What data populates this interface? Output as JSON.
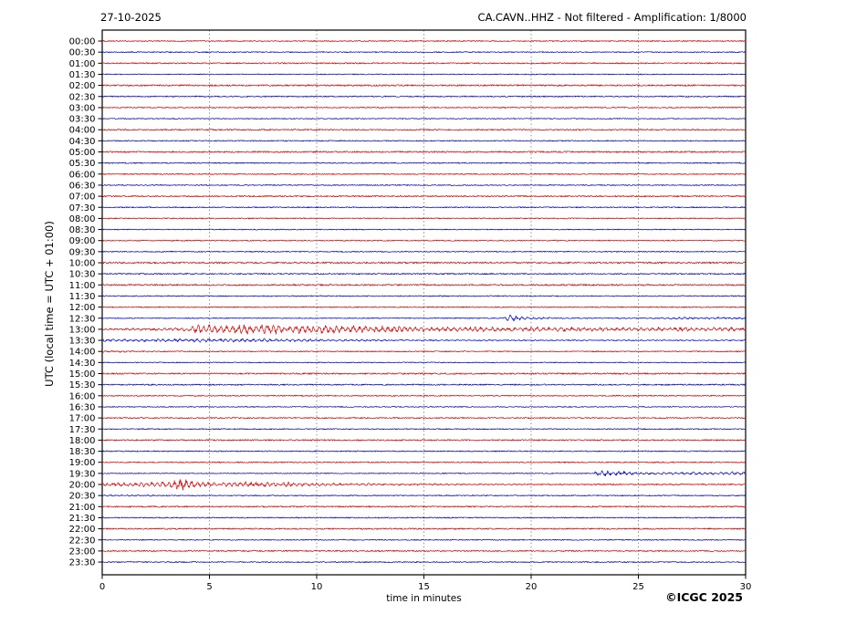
{
  "header": {
    "date": "27-10-2025",
    "title": "CA.CAVN..HHZ - Not filtered - Amplification: 1/8000"
  },
  "footer": {
    "copyright": "©ICGC 2025"
  },
  "colors": {
    "background": "#ffffff",
    "axis": "#000000",
    "grid": "#777777",
    "trace_red": "#e00000",
    "trace_blue": "#0000d8"
  },
  "chart_data": {
    "type": "line",
    "subtype": "helicorder-seismogram",
    "title": "CA.CAVN..HHZ - Not filtered - Amplification: 1/8000",
    "station": "CA.CAVN..HHZ",
    "processing": "Not filtered",
    "amplification": "1/8000",
    "date": "27-10-2025",
    "xlabel": "time in minutes",
    "ylabel": "UTC (local time = UTC + 01:00)",
    "xlim": [
      0,
      30
    ],
    "x_ticks": [
      0,
      5,
      10,
      15,
      20,
      25,
      30
    ],
    "grid_minutes": [
      5,
      10,
      15,
      20,
      25
    ],
    "minutes_per_row": 30,
    "rows": 48,
    "legend": "rows alternate red (on the hour) and blue (on the half hour)",
    "events": [
      {
        "row": "12:30",
        "onset_min": 18.8,
        "description": "small high-frequency burst with short decaying coda, slight re-activity 27-30 min"
      },
      {
        "row": "13:00",
        "onset_min": 4.0,
        "description": "strong sustained oscillation lasting the entire row, slowly decaying"
      },
      {
        "row": "13:30",
        "description": "decaying coda of the 13:00 event through ~12 min"
      },
      {
        "row": "14:00",
        "description": "faint coda tail at start of row"
      },
      {
        "row": "19:30",
        "onset_min": 23.0,
        "description": "high-frequency burst with coda continuing to end of row"
      },
      {
        "row": "20:00",
        "peak_min": 3.6,
        "description": "largest burst of the day, strong spike near 3.5 min, decaying until ~12 min"
      },
      {
        "row": "20:30",
        "description": "faint coda tail at start of row"
      }
    ],
    "traces": [
      {
        "label": "00:00",
        "color": "red",
        "base": 0.6
      },
      {
        "label": "00:30",
        "color": "blue",
        "base": 0.55
      },
      {
        "label": "01:00",
        "color": "red",
        "base": 0.7
      },
      {
        "label": "01:30",
        "color": "blue",
        "base": 0.5
      },
      {
        "label": "02:00",
        "color": "red",
        "base": 0.8
      },
      {
        "label": "02:30",
        "color": "blue",
        "base": 0.65
      },
      {
        "label": "03:00",
        "color": "red",
        "base": 0.6
      },
      {
        "label": "03:30",
        "color": "blue",
        "base": 0.5
      },
      {
        "label": "04:00",
        "color": "red",
        "base": 0.7
      },
      {
        "label": "04:30",
        "color": "blue",
        "base": 0.55
      },
      {
        "label": "05:00",
        "color": "red",
        "base": 0.8
      },
      {
        "label": "05:30",
        "color": "blue",
        "base": 0.6
      },
      {
        "label": "06:00",
        "color": "red",
        "base": 0.65
      },
      {
        "label": "06:30",
        "color": "blue",
        "base": 0.55
      },
      {
        "label": "07:00",
        "color": "red",
        "base": 0.75
      },
      {
        "label": "07:30",
        "color": "blue",
        "base": 0.6
      },
      {
        "label": "08:00",
        "color": "red",
        "base": 0.6
      },
      {
        "label": "08:30",
        "color": "blue",
        "base": 0.5
      },
      {
        "label": "09:00",
        "color": "red",
        "base": 0.6
      },
      {
        "label": "09:30",
        "color": "blue",
        "base": 0.55
      },
      {
        "label": "10:00",
        "color": "red",
        "base": 0.85
      },
      {
        "label": "10:30",
        "color": "blue",
        "base": 0.7
      },
      {
        "label": "11:00",
        "color": "red",
        "base": 0.8
      },
      {
        "label": "11:30",
        "color": "blue",
        "base": 0.55
      },
      {
        "label": "12:00",
        "color": "red",
        "base": 0.6
      },
      {
        "label": "12:30",
        "color": "blue",
        "base": 0.5,
        "env": [
          [
            18.7,
            0
          ],
          [
            18.95,
            4.2
          ],
          [
            19.5,
            2.0
          ],
          [
            20.3,
            1.0
          ],
          [
            21.5,
            0.5
          ],
          [
            23,
            0.35
          ],
          [
            26,
            0.3
          ],
          [
            27,
            1.2
          ],
          [
            27.8,
            0.7
          ],
          [
            28.6,
            1.1
          ],
          [
            29.4,
            0.8
          ],
          [
            30,
            1.0
          ]
        ]
      },
      {
        "label": "13:00",
        "color": "red",
        "base": 0.7,
        "env": [
          [
            0,
            0.6
          ],
          [
            2,
            0.9
          ],
          [
            3.2,
            1.3
          ],
          [
            3.9,
            2.2
          ],
          [
            4.3,
            4.8
          ],
          [
            5.0,
            5.4
          ],
          [
            5.8,
            4.2
          ],
          [
            6.5,
            5.8
          ],
          [
            7.3,
            4.6
          ],
          [
            8.2,
            5.6
          ],
          [
            9.2,
            4.2
          ],
          [
            10.3,
            4.8
          ],
          [
            11.5,
            3.6
          ],
          [
            13,
            3.4
          ],
          [
            15,
            3.0
          ],
          [
            17,
            2.6
          ],
          [
            19,
            2.4
          ],
          [
            22,
            2.2
          ],
          [
            25,
            2.0
          ],
          [
            28,
            1.9
          ],
          [
            30,
            2.1
          ]
        ]
      },
      {
        "label": "13:30",
        "color": "blue",
        "base": 0.5,
        "env": [
          [
            0,
            1.7
          ],
          [
            1.5,
            1.3
          ],
          [
            3,
            1.5
          ],
          [
            4.5,
            2.0
          ],
          [
            6,
            1.8
          ],
          [
            7.5,
            2.0
          ],
          [
            9,
            1.5
          ],
          [
            11,
            1.1
          ],
          [
            13,
            0.8
          ],
          [
            16,
            0.55
          ],
          [
            20,
            0.4
          ],
          [
            25,
            0.3
          ],
          [
            30,
            0.3
          ]
        ]
      },
      {
        "label": "14:00",
        "color": "red",
        "base": 0.6,
        "env": [
          [
            0,
            0.8
          ],
          [
            1.5,
            0.5
          ],
          [
            3,
            0.25
          ],
          [
            5,
            0.1
          ],
          [
            30,
            0
          ]
        ]
      },
      {
        "label": "14:30",
        "color": "blue",
        "base": 0.5
      },
      {
        "label": "15:00",
        "color": "red",
        "base": 0.8
      },
      {
        "label": "15:30",
        "color": "blue",
        "base": 0.7
      },
      {
        "label": "16:00",
        "color": "red",
        "base": 0.6
      },
      {
        "label": "16:30",
        "color": "blue",
        "base": 0.5
      },
      {
        "label": "17:00",
        "color": "red",
        "base": 0.65
      },
      {
        "label": "17:30",
        "color": "blue",
        "base": 0.55
      },
      {
        "label": "18:00",
        "color": "red",
        "base": 0.7
      },
      {
        "label": "18:30",
        "color": "blue",
        "base": 0.6
      },
      {
        "label": "19:00",
        "color": "red",
        "base": 0.65
      },
      {
        "label": "19:30",
        "color": "blue",
        "base": 0.5,
        "env": [
          [
            22.85,
            0
          ],
          [
            23.05,
            4.0
          ],
          [
            23.6,
            3.2
          ],
          [
            24.3,
            2.2
          ],
          [
            25.0,
            1.4
          ],
          [
            25.8,
            0.9
          ],
          [
            26.5,
            1.3
          ],
          [
            27.2,
            1.0
          ],
          [
            27.9,
            1.8
          ],
          [
            28.6,
            1.2
          ],
          [
            29.3,
            1.6
          ],
          [
            30,
            1.3
          ]
        ]
      },
      {
        "label": "20:00",
        "color": "red",
        "base": 0.65,
        "env": [
          [
            0,
            1.6
          ],
          [
            0.7,
            2.4
          ],
          [
            1.4,
            1.9
          ],
          [
            2.1,
            2.9
          ],
          [
            2.7,
            2.4
          ],
          [
            3.2,
            3.4
          ],
          [
            3.5,
            8.5
          ],
          [
            3.9,
            6.5
          ],
          [
            4.3,
            3.2
          ],
          [
            5.0,
            2.4
          ],
          [
            5.7,
            3.3
          ],
          [
            6.3,
            2.3
          ],
          [
            7.0,
            3.0
          ],
          [
            7.7,
            2.1
          ],
          [
            8.4,
            2.7
          ],
          [
            9.2,
            1.8
          ],
          [
            10.2,
            1.5
          ],
          [
            11.5,
            1.1
          ],
          [
            13.5,
            0.8
          ],
          [
            16,
            0.5
          ],
          [
            19,
            0.35
          ],
          [
            23,
            0.25
          ],
          [
            30,
            0.2
          ]
        ]
      },
      {
        "label": "20:30",
        "color": "blue",
        "base": 0.55,
        "env": [
          [
            0,
            0.7
          ],
          [
            1.5,
            0.45
          ],
          [
            3.5,
            0.2
          ],
          [
            6,
            0.1
          ],
          [
            30,
            0
          ]
        ]
      },
      {
        "label": "21:00",
        "color": "red",
        "base": 0.75
      },
      {
        "label": "21:30",
        "color": "blue",
        "base": 0.6
      },
      {
        "label": "22:00",
        "color": "red",
        "base": 0.7
      },
      {
        "label": "22:30",
        "color": "blue",
        "base": 0.55
      },
      {
        "label": "23:00",
        "color": "red",
        "base": 0.7
      },
      {
        "label": "23:30",
        "color": "blue",
        "base": 0.6
      }
    ]
  }
}
